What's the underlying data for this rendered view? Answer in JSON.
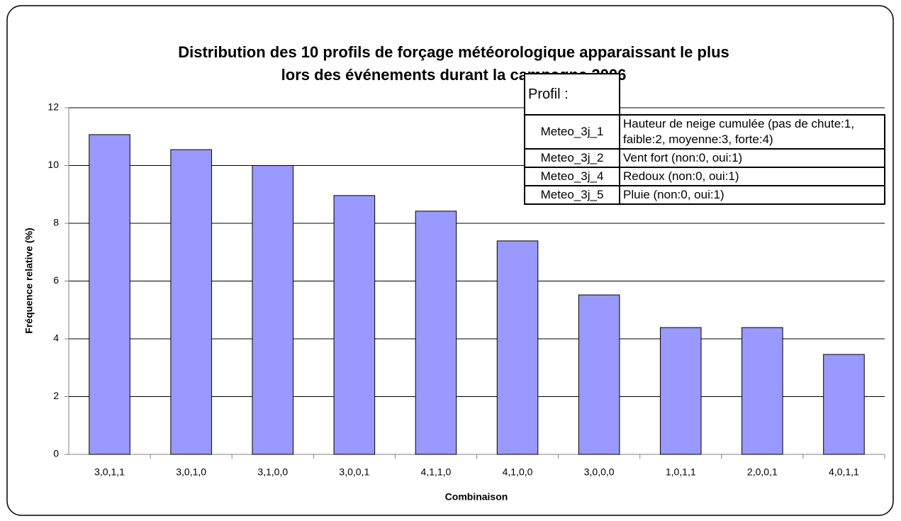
{
  "chart_data": {
    "type": "bar",
    "title": [
      "Distribution des 10 profils de forçage météorologique apparaissant le plus",
      "lors des événements durant la campagne 2006"
    ],
    "x_label": "Combinaison",
    "y_label": "Fréquence relative (%)",
    "categories": [
      "3,0,1,1",
      "3,0,1,0",
      "3,1,0,0",
      "3,0,0,1",
      "4,1,1,0",
      "4,1,0,0",
      "3,0,0,0",
      "1,0,1,1",
      "2,0,0,1",
      "4,0,1,1"
    ],
    "values": [
      11.07,
      10.55,
      10.0,
      8.96,
      8.42,
      7.39,
      5.52,
      4.39,
      4.39,
      3.46
    ],
    "color": "#9999ff",
    "ylim": [
      0,
      12
    ],
    "yticks": [
      0,
      2,
      4,
      6,
      8,
      10,
      12
    ],
    "grid": true,
    "profile_table": {
      "header": "Profil :",
      "rows": [
        [
          "Meteo_3j_1",
          "Hauteur de neige cumulée (pas de chute:1, faible:2, moyenne:3, forte:4)"
        ],
        [
          "Meteo_3j_2",
          "Vent fort (non:0, oui:1)"
        ],
        [
          "Meteo_3j_4",
          "Redoux (non:0, oui:1)"
        ],
        [
          "Meteo_3j_5",
          "Pluie (non:0, oui:1)"
        ]
      ]
    }
  }
}
